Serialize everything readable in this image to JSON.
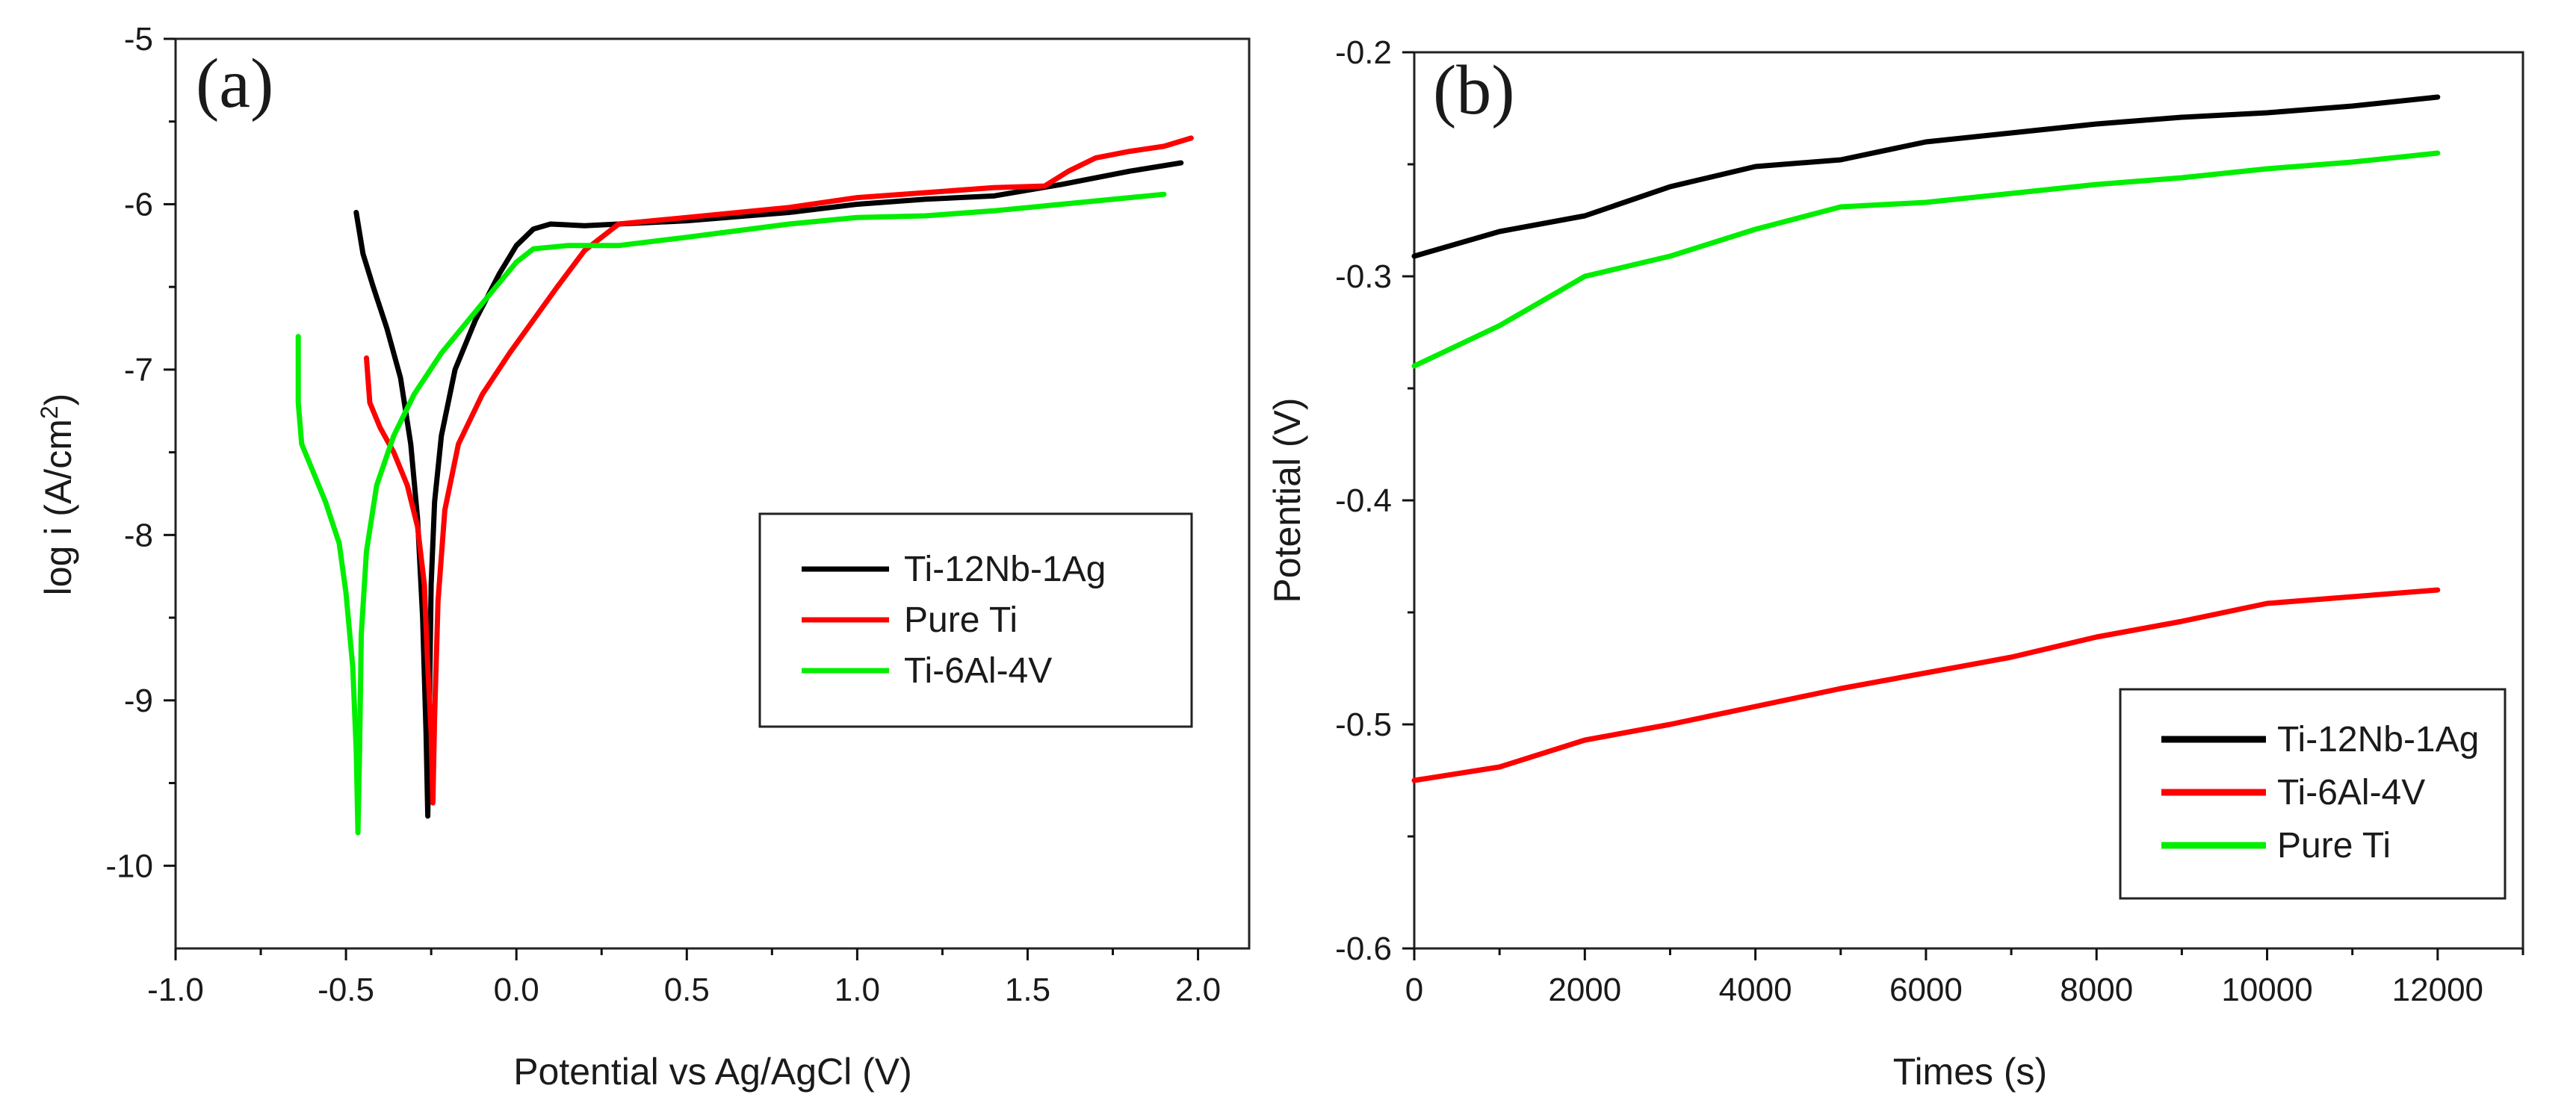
{
  "chart_data": [
    {
      "id": "a",
      "type": "line",
      "panel_label": "(a)",
      "title": "",
      "xlabel": "Potential vs Ag/AgCl (V)",
      "ylabel_main": "log i (A/cm",
      "ylabel_sup": "2",
      "ylabel_end": ")",
      "xlim": [
        -1.0,
        2.15
      ],
      "ylim": [
        -10.5,
        -5
      ],
      "xticks": [
        -1.0,
        -0.5,
        0.0,
        0.5,
        1.0,
        1.5,
        2.0
      ],
      "xtick_labels": [
        "-1.0",
        "-0.5",
        "0.0",
        "0.5",
        "1.0",
        "1.5",
        "2.0"
      ],
      "yticks": [
        -10,
        -9,
        -8,
        -7,
        -6,
        -5
      ],
      "ytick_labels": [
        "-10",
        "-9",
        "-8",
        "-7",
        "-6",
        "-5"
      ],
      "legend_position": "center-right",
      "series": [
        {
          "name": "Ti-12Nb-1Ag",
          "color": "#000000",
          "points": [
            [
              -0.47,
              -6.05
            ],
            [
              -0.45,
              -6.3
            ],
            [
              -0.42,
              -6.5
            ],
            [
              -0.38,
              -6.75
            ],
            [
              -0.34,
              -7.05
            ],
            [
              -0.31,
              -7.45
            ],
            [
              -0.29,
              -7.9
            ],
            [
              -0.275,
              -8.5
            ],
            [
              -0.265,
              -9.2
            ],
            [
              -0.26,
              -9.7
            ],
            [
              -0.255,
              -9.0
            ],
            [
              -0.25,
              -8.3
            ],
            [
              -0.24,
              -7.8
            ],
            [
              -0.22,
              -7.4
            ],
            [
              -0.18,
              -7.0
            ],
            [
              -0.12,
              -6.7
            ],
            [
              -0.05,
              -6.42
            ],
            [
              0.0,
              -6.25
            ],
            [
              0.05,
              -6.15
            ],
            [
              0.1,
              -6.12
            ],
            [
              0.2,
              -6.13
            ],
            [
              0.3,
              -6.12
            ],
            [
              0.5,
              -6.1
            ],
            [
              0.8,
              -6.05
            ],
            [
              1.0,
              -6.0
            ],
            [
              1.2,
              -5.97
            ],
            [
              1.4,
              -5.95
            ],
            [
              1.6,
              -5.88
            ],
            [
              1.8,
              -5.8
            ],
            [
              1.95,
              -5.75
            ]
          ]
        },
        {
          "name": "Pure Ti",
          "color": "#ff0000",
          "points": [
            [
              -0.44,
              -6.93
            ],
            [
              -0.43,
              -7.2
            ],
            [
              -0.4,
              -7.35
            ],
            [
              -0.36,
              -7.5
            ],
            [
              -0.32,
              -7.7
            ],
            [
              -0.29,
              -7.95
            ],
            [
              -0.27,
              -8.3
            ],
            [
              -0.26,
              -8.8
            ],
            [
              -0.25,
              -9.2
            ],
            [
              -0.245,
              -9.62
            ],
            [
              -0.24,
              -9.1
            ],
            [
              -0.23,
              -8.4
            ],
            [
              -0.21,
              -7.85
            ],
            [
              -0.17,
              -7.45
            ],
            [
              -0.1,
              -7.15
            ],
            [
              -0.02,
              -6.9
            ],
            [
              0.05,
              -6.7
            ],
            [
              0.12,
              -6.5
            ],
            [
              0.2,
              -6.28
            ],
            [
              0.3,
              -6.12
            ],
            [
              0.5,
              -6.08
            ],
            [
              0.8,
              -6.02
            ],
            [
              1.0,
              -5.96
            ],
            [
              1.2,
              -5.93
            ],
            [
              1.4,
              -5.9
            ],
            [
              1.55,
              -5.89
            ],
            [
              1.62,
              -5.8
            ],
            [
              1.7,
              -5.72
            ],
            [
              1.8,
              -5.68
            ],
            [
              1.9,
              -5.65
            ],
            [
              1.98,
              -5.6
            ]
          ]
        },
        {
          "name": "Ti-6Al-4V",
          "color": "#00ee00",
          "points": [
            [
              -0.64,
              -6.8
            ],
            [
              -0.64,
              -7.2
            ],
            [
              -0.63,
              -7.45
            ],
            [
              -0.6,
              -7.6
            ],
            [
              -0.56,
              -7.8
            ],
            [
              -0.52,
              -8.05
            ],
            [
              -0.5,
              -8.35
            ],
            [
              -0.48,
              -8.8
            ],
            [
              -0.47,
              -9.3
            ],
            [
              -0.465,
              -9.8
            ],
            [
              -0.46,
              -9.3
            ],
            [
              -0.455,
              -8.6
            ],
            [
              -0.44,
              -8.1
            ],
            [
              -0.41,
              -7.7
            ],
            [
              -0.36,
              -7.4
            ],
            [
              -0.3,
              -7.15
            ],
            [
              -0.22,
              -6.9
            ],
            [
              -0.14,
              -6.7
            ],
            [
              -0.06,
              -6.5
            ],
            [
              0.0,
              -6.35
            ],
            [
              0.05,
              -6.27
            ],
            [
              0.15,
              -6.25
            ],
            [
              0.3,
              -6.25
            ],
            [
              0.5,
              -6.2
            ],
            [
              0.8,
              -6.12
            ],
            [
              1.0,
              -6.08
            ],
            [
              1.2,
              -6.07
            ],
            [
              1.4,
              -6.04
            ],
            [
              1.6,
              -6.0
            ],
            [
              1.8,
              -5.96
            ],
            [
              1.9,
              -5.94
            ]
          ]
        }
      ]
    },
    {
      "id": "b",
      "type": "line",
      "panel_label": "(b)",
      "title": "",
      "xlabel": "Times (s)",
      "ylabel": "Potential (V)",
      "xlim": [
        0,
        13000
      ],
      "ylim": [
        -0.6,
        -0.2
      ],
      "xticks": [
        0,
        2000,
        4000,
        6000,
        8000,
        10000,
        12000
      ],
      "xtick_labels": [
        "0",
        "2000",
        "4000",
        "6000",
        "8000",
        "10000",
        "12000"
      ],
      "yticks": [
        -0.6,
        -0.5,
        -0.4,
        -0.3,
        -0.2
      ],
      "ytick_labels": [
        "-0.6",
        "-0.5",
        "-0.4",
        "-0.3",
        "-0.2"
      ],
      "legend_position": "bottom-right",
      "series": [
        {
          "name": "Ti-12Nb-1Ag",
          "color": "#000000",
          "points": [
            [
              0,
              -0.291
            ],
            [
              1000,
              -0.28
            ],
            [
              2000,
              -0.273
            ],
            [
              3000,
              -0.26
            ],
            [
              4000,
              -0.251
            ],
            [
              5000,
              -0.248
            ],
            [
              6000,
              -0.24
            ],
            [
              7000,
              -0.236
            ],
            [
              8000,
              -0.232
            ],
            [
              9000,
              -0.229
            ],
            [
              10000,
              -0.227
            ],
            [
              11000,
              -0.224
            ],
            [
              12000,
              -0.22
            ]
          ]
        },
        {
          "name": "Ti-6Al-4V",
          "color": "#ff0000",
          "points": [
            [
              0,
              -0.525
            ],
            [
              1000,
              -0.519
            ],
            [
              2000,
              -0.507
            ],
            [
              3000,
              -0.5
            ],
            [
              4000,
              -0.492
            ],
            [
              5000,
              -0.484
            ],
            [
              6000,
              -0.477
            ],
            [
              7000,
              -0.47
            ],
            [
              8000,
              -0.461
            ],
            [
              9000,
              -0.454
            ],
            [
              10000,
              -0.446
            ],
            [
              11000,
              -0.443
            ],
            [
              12000,
              -0.44
            ]
          ]
        },
        {
          "name": "Pure Ti",
          "color": "#00ee00",
          "points": [
            [
              0,
              -0.34
            ],
            [
              1000,
              -0.322
            ],
            [
              2000,
              -0.3
            ],
            [
              3000,
              -0.291
            ],
            [
              4000,
              -0.279
            ],
            [
              5000,
              -0.269
            ],
            [
              6000,
              -0.267
            ],
            [
              7000,
              -0.263
            ],
            [
              8000,
              -0.259
            ],
            [
              9000,
              -0.256
            ],
            [
              10000,
              -0.252
            ],
            [
              11000,
              -0.249
            ],
            [
              12000,
              -0.245
            ]
          ]
        }
      ]
    }
  ]
}
